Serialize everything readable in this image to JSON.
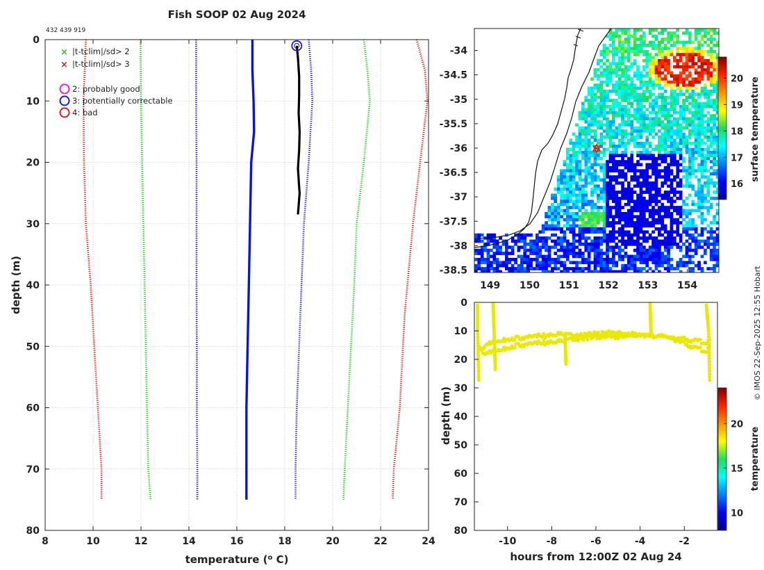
{
  "title": "Fish SOOP 02 Aug 2024",
  "id_label": "432 439 919",
  "copyright": "© IMOS 22-Sep-2025 12:55 Hobart",
  "legend": {
    "flag_x_green": "|t-tclim|/sd> 2",
    "flag_x_red": "|t-tclim|/sd> 3",
    "flag_2": "2: probably good",
    "flag_3": "3: potentially correctable",
    "flag_4": "4: bad"
  },
  "colors": {
    "profile": "#000000",
    "clim_mean": "#0a14d8",
    "sd1": "#1a1ab8",
    "sd2": "#22cc22",
    "sd3": "#dd1a1a",
    "time_series": "#e8e800",
    "flag_2": "#e020e0",
    "flag_3": "#1a1ad8",
    "flag_4": "#e01a1a"
  },
  "chart_data": [
    {
      "type": "line",
      "name": "profile",
      "title": "Fish SOOP 02 Aug 2024",
      "xlabel": "temperature (",
      "xlabel_sup": "o",
      "xlabel_end": " C)",
      "ylabel": "depth (m)",
      "xlim": [
        8,
        24
      ],
      "ylim": [
        80,
        0
      ],
      "xticks": [
        "8",
        "10",
        "12",
        "14",
        "16",
        "18",
        "20",
        "22",
        "24"
      ],
      "yticks": [
        "0",
        "10",
        "20",
        "30",
        "40",
        "50",
        "60",
        "70",
        "80"
      ],
      "series": [
        {
          "name": "observed",
          "style": "solid",
          "x": [
            18.5,
            18.55,
            18.6,
            18.6,
            18.58,
            18.62,
            18.6,
            18.55,
            18.6,
            18.62,
            18.55
          ],
          "y": [
            1,
            3,
            6,
            9,
            12,
            15,
            18,
            21,
            24,
            25,
            28.5
          ]
        },
        {
          "name": "clim_mean",
          "style": "solid",
          "x": [
            16.65,
            16.65,
            16.7,
            16.72,
            16.6,
            16.55,
            16.5,
            16.45,
            16.4,
            16.4,
            16.4
          ],
          "y": [
            0,
            5,
            10,
            15,
            20,
            30,
            40,
            50,
            60,
            70,
            75
          ]
        },
        {
          "name": "clim_minus_1sd",
          "style": "dotted",
          "x": [
            14.3,
            14.3,
            14.32,
            14.32,
            14.32,
            14.33,
            14.33,
            14.35,
            14.35,
            14.37
          ],
          "y": [
            0,
            10,
            20,
            30,
            40,
            50,
            60,
            70,
            75,
            75
          ]
        },
        {
          "name": "clim_plus_1sd",
          "style": "dotted",
          "x": [
            19.0,
            19.1,
            19.15,
            19.0,
            18.8,
            18.7,
            18.6,
            18.5,
            18.45,
            18.45
          ],
          "y": [
            0,
            5,
            10,
            20,
            30,
            40,
            50,
            60,
            70,
            75
          ]
        },
        {
          "name": "clim_minus_2sd",
          "style": "dotted",
          "x": [
            11.98,
            12.0,
            12.05,
            12.1,
            12.15,
            12.2,
            12.25,
            12.3,
            12.4
          ],
          "y": [
            0,
            10,
            20,
            30,
            40,
            50,
            60,
            70,
            75
          ]
        },
        {
          "name": "clim_plus_2sd",
          "style": "dotted",
          "x": [
            21.3,
            21.45,
            21.55,
            21.3,
            21.0,
            20.9,
            20.7,
            20.5,
            20.45
          ],
          "y": [
            0,
            5,
            10,
            20,
            30,
            40,
            55,
            70,
            75
          ]
        },
        {
          "name": "clim_minus_3sd",
          "style": "dotted",
          "x": [
            9.7,
            9.6,
            9.62,
            9.7,
            9.9,
            10.05,
            10.2,
            10.35,
            10.35
          ],
          "y": [
            0,
            10,
            20,
            30,
            40,
            50,
            60,
            70,
            75
          ]
        },
        {
          "name": "clim_plus_3sd",
          "style": "dotted",
          "x": [
            23.5,
            23.85,
            23.95,
            23.65,
            23.35,
            23.0,
            22.8,
            22.55,
            22.5
          ],
          "y": [
            0,
            5,
            10,
            20,
            30,
            45,
            60,
            70,
            75
          ]
        }
      ],
      "flag_markers": [
        {
          "x": 18.5,
          "y": 1,
          "flag": "3"
        }
      ]
    },
    {
      "type": "heatmap",
      "name": "sst_map",
      "colorbar_label": "surface temperature",
      "colorbar_ticks": [
        "16",
        "17",
        "18",
        "19",
        "20"
      ],
      "colorbar_range": [
        15.4,
        20.8
      ],
      "xlim": [
        148.6,
        154.8
      ],
      "ylim": [
        -38.55,
        -33.55
      ],
      "xticks": [
        "149",
        "150",
        "151",
        "152",
        "153",
        "154"
      ],
      "yticks": [
        "-34",
        "-34.5",
        "-35",
        "-35.5",
        "-36",
        "-36.5",
        "-37",
        "-37.5",
        "-38",
        "-38.5"
      ],
      "marker": {
        "lon": 151.7,
        "lat": -36.0
      }
    },
    {
      "type": "scatter",
      "name": "depth_time",
      "xlabel": "hours from 12:00Z 02 Aug 24",
      "ylabel": "depth (m)",
      "colorbar_label": "temperature",
      "colorbar_ticks": [
        "10",
        "15",
        "20"
      ],
      "colorbar_range": [
        8,
        24
      ],
      "xlim": [
        -11.5,
        -0.5
      ],
      "ylim": [
        80,
        0
      ],
      "xticks": [
        "-10",
        "-8",
        "-6",
        "-4",
        "-2"
      ],
      "yticks": [
        "0",
        "10",
        "20",
        "30",
        "40",
        "50",
        "60",
        "70",
        "80"
      ],
      "series": [
        {
          "name": "upper",
          "x": [
            -11.3,
            -11.0,
            -10.6,
            -10.0,
            -9.0,
            -8.0,
            -7.5,
            -7.0,
            -6.0,
            -5.0,
            -4.5,
            -4.0,
            -3.0,
            -2.0,
            -1.5,
            -1.0,
            -0.8
          ],
          "y": [
            17,
            15,
            14,
            13,
            12,
            11.5,
            11,
            12,
            11,
            10.5,
            11,
            11.5,
            12,
            13,
            13.5,
            14,
            13
          ]
        },
        {
          "name": "lower",
          "x": [
            -11.3,
            -11.0,
            -10.5,
            -10.0,
            -9.5,
            -9.0,
            -8.0,
            -7.5,
            -7.0,
            -6.5,
            -6.0,
            -5.0,
            -4.0,
            -3.0,
            -2.5,
            -2.0,
            -1.5,
            -1.0,
            -0.8
          ],
          "y": [
            16,
            18,
            17,
            16,
            15,
            14.5,
            14,
            13.5,
            13,
            12.5,
            12,
            12,
            11.5,
            12,
            13,
            14.5,
            16,
            17,
            15
          ]
        },
        {
          "name": "excursions",
          "x": [
            -11.35,
            -11.35,
            -11.3,
            -10.65,
            -10.6,
            -10.55,
            -10.4,
            -10.0,
            -7.4,
            -7.35,
            -6.0,
            -3.55,
            -3.5,
            -1.0,
            -0.9,
            -0.85
          ],
          "y": [
            1,
            10,
            28,
            0.5,
            12,
            24,
            25,
            20,
            12,
            22,
            9,
            0.5,
            12,
            1,
            10,
            28
          ]
        }
      ]
    }
  ]
}
